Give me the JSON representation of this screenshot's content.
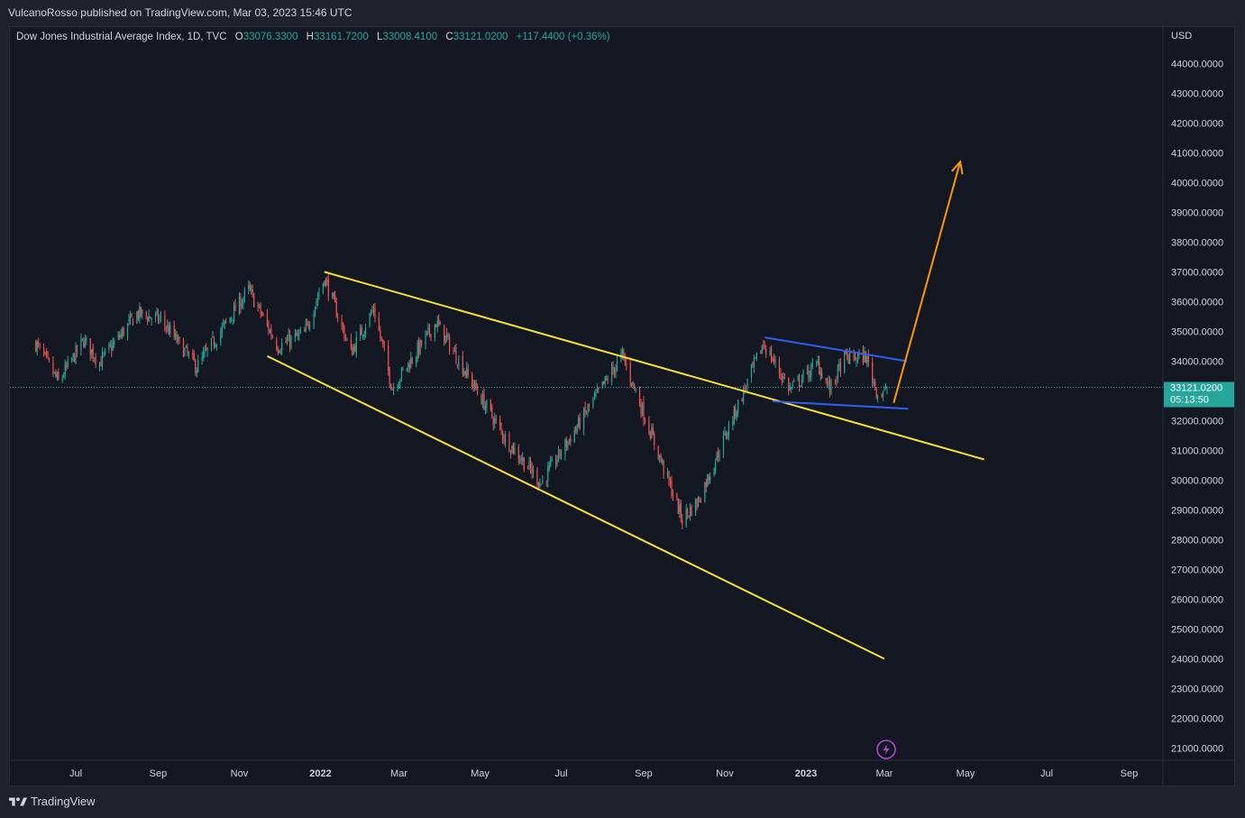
{
  "header": {
    "publisher": "VulcanoRosso published on TradingView.com, Mar 03, 2023 15:46 UTC"
  },
  "legend": {
    "symbol": "Dow Jones Industrial Average Index, 1D, TVC",
    "open_label": "O",
    "open": "33076.3300",
    "high_label": "H",
    "high": "33161.7200",
    "low_label": "L",
    "low": "33008.4100",
    "close_label": "C",
    "close": "33121.0200",
    "change": "+117.4400 (+0.36%)"
  },
  "price_axis": {
    "currency": "USD",
    "last_price": "33121.0200",
    "countdown": "05:13:50"
  },
  "footer": {
    "brand": "TradingView"
  },
  "colors": {
    "background": "#131722",
    "up": "#26a69a",
    "down": "#ef5350",
    "wedge_lines": "#f5e13a",
    "channel_lines": "#2f5ff0",
    "arrow": "#ff9800",
    "price_label": "#26a69a"
  },
  "chart_data": {
    "type": "candlestick",
    "title": "Dow Jones Industrial Average Index, 1D, TVC",
    "ylabel": "USD",
    "ylim": [
      20500,
      45000
    ],
    "y_ticks": [
      "44000.0000",
      "43000.0000",
      "42000.0000",
      "41000.0000",
      "40000.0000",
      "39000.0000",
      "38000.0000",
      "37000.0000",
      "36000.0000",
      "35000.0000",
      "34000.0000",
      "33000.0000",
      "32000.0000",
      "31000.0000",
      "30000.0000",
      "29000.0000",
      "28000.0000",
      "27000.0000",
      "26000.0000",
      "25000.0000",
      "24000.0000",
      "23000.0000",
      "22000.0000",
      "21000.0000"
    ],
    "x_ticks": [
      "Jul",
      "Sep",
      "Nov",
      "2022",
      "Mar",
      "May",
      "Jul",
      "Sep",
      "Nov",
      "2023",
      "Mar",
      "May",
      "Jul",
      "Sep"
    ],
    "x_tick_dates": [
      "2021-07-01",
      "2021-09-01",
      "2021-11-01",
      "2022-01-01",
      "2022-03-01",
      "2022-05-01",
      "2022-07-01",
      "2022-09-01",
      "2022-11-01",
      "2023-01-01",
      "2023-03-01",
      "2023-05-01",
      "2023-07-01",
      "2023-09-01"
    ],
    "price_path": [
      [
        "2021-06-01",
        34600
      ],
      [
        "2021-06-18",
        33300
      ],
      [
        "2021-07-07",
        34700
      ],
      [
        "2021-07-19",
        33960
      ],
      [
        "2021-08-16",
        35600
      ],
      [
        "2021-09-03",
        35400
      ],
      [
        "2021-09-30",
        33800
      ],
      [
        "2021-11-08",
        36400
      ],
      [
        "2021-11-30",
        34500
      ],
      [
        "2021-12-20",
        34930
      ],
      [
        "2022-01-04",
        36800
      ],
      [
        "2022-01-24",
        34300
      ],
      [
        "2022-02-10",
        35770
      ],
      [
        "2022-02-24",
        33100
      ],
      [
        "2022-03-29",
        35300
      ],
      [
        "2022-05-20",
        31400
      ],
      [
        "2022-06-16",
        29900
      ],
      [
        "2022-08-16",
        34200
      ],
      [
        "2022-09-30",
        28700
      ],
      [
        "2022-10-12",
        29300
      ],
      [
        "2022-11-30",
        34600
      ],
      [
        "2022-12-20",
        33050
      ],
      [
        "2023-01-10",
        33900
      ],
      [
        "2023-01-19",
        33050
      ],
      [
        "2023-01-30",
        34100
      ],
      [
        "2023-02-15",
        34150
      ],
      [
        "2023-02-24",
        32900
      ],
      [
        "2023-03-02",
        33000
      ],
      [
        "2023-03-03",
        33121
      ]
    ],
    "last_close": 33121.02,
    "drawings": [
      {
        "name": "wedge-upper-line",
        "color": "yellow",
        "from": [
          "2022-01-04",
          37000
        ],
        "to": [
          "2023-05-15",
          30700
        ]
      },
      {
        "name": "wedge-lower-line",
        "color": "yellow",
        "from": [
          "2021-11-22",
          34170
        ],
        "to": [
          "2023-03-01",
          24000
        ]
      },
      {
        "name": "channel-upper-line",
        "color": "blue",
        "from": [
          "2022-12-01",
          34800
        ],
        "to": [
          "2023-03-18",
          34000
        ]
      },
      {
        "name": "channel-lower-line",
        "color": "blue",
        "from": [
          "2022-12-07",
          32650
        ],
        "to": [
          "2023-03-19",
          32400
        ]
      },
      {
        "name": "target-arrow",
        "color": "orange",
        "from": [
          "2023-03-08",
          32600
        ],
        "to": [
          "2023-04-27",
          40700
        ]
      }
    ]
  }
}
